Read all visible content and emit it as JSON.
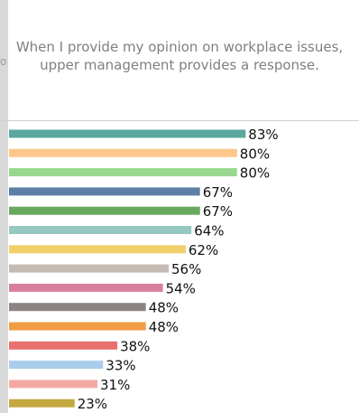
{
  "chart_data": {
    "type": "bar",
    "orientation": "horizontal",
    "title": "When I provide my opinion on workplace issues, upper management provides a response.",
    "xlabel": "",
    "ylabel": "",
    "xlim": [
      0,
      100
    ],
    "grid": false,
    "legend": "none",
    "data_labels": [
      "83%",
      "80%",
      "80%",
      "67%",
      "67%",
      "64%",
      "62%",
      "56%",
      "54%",
      "48%",
      "48%",
      "38%",
      "33%",
      "31%",
      "23%"
    ],
    "values": [
      83,
      80,
      80,
      67,
      67,
      64,
      62,
      56,
      54,
      48,
      48,
      38,
      33,
      31,
      23
    ],
    "colors": [
      "#5aa8a0",
      "#fcc78a",
      "#98d78e",
      "#5f7ea6",
      "#67a85e",
      "#95c9c0",
      "#f0d06a",
      "#c5bab4",
      "#d67f9c",
      "#8c8482",
      "#f29b45",
      "#e8706f",
      "#a9cdeb",
      "#f5a9a3",
      "#c2a83e"
    ]
  },
  "left_edge_text": "o"
}
